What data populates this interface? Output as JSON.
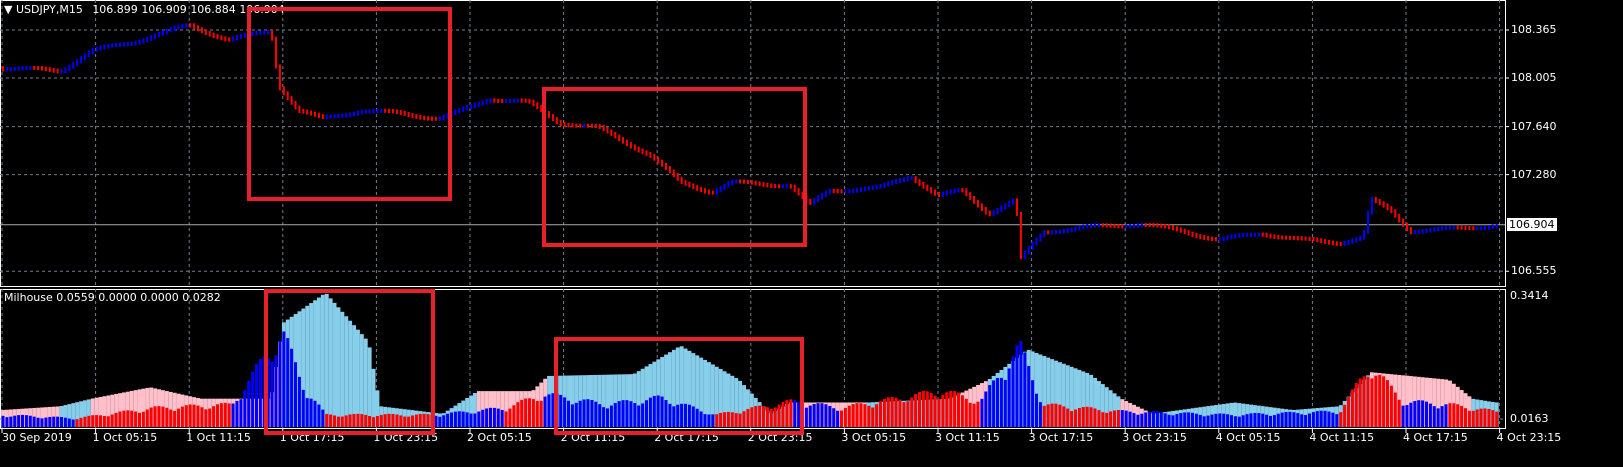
{
  "header": {
    "symbol": "USDJPY,M15",
    "open": "106.899",
    "high": "106.909",
    "low": "106.884",
    "close": "106.904"
  },
  "indicator_header": {
    "name": "Milhouse",
    "v1": "0.0559",
    "v2": "0.0000",
    "v3": "0.0000",
    "v4": "0.0282"
  },
  "colors": {
    "background": "#000000",
    "grid": "#6f7f8f",
    "bull": "#0000ff",
    "bear": "#ff0000",
    "envelope_pink": "#ffc0cb",
    "envelope_blue": "#87ceeb",
    "annotation": "#e8202a"
  },
  "chart_data": [
    {
      "type": "line",
      "title": "USDJPY,M15",
      "y_ticks": [
        "108.365",
        "108.005",
        "107.640",
        "107.280",
        "106.555"
      ],
      "current_price": "106.904",
      "ylim": [
        106.48,
        108.59
      ],
      "grid": true,
      "points": [
        [
          "09-30 23:15",
          108.08
        ],
        [
          "10-01 03:00",
          108.06
        ],
        [
          "10-01 05:00",
          108.21
        ],
        [
          "10-01 07:30",
          108.27
        ],
        [
          "10-01 10:00",
          108.36
        ],
        [
          "10-01 11:15",
          108.4
        ],
        [
          "10-01 13:45",
          108.29
        ],
        [
          "10-01 16:30",
          108.36
        ],
        [
          "10-01 17:00",
          107.95
        ],
        [
          "10-01 18:15",
          107.76
        ],
        [
          "10-01 19:45",
          107.7
        ],
        [
          "10-01 22:15",
          107.76
        ],
        [
          "10-02 00:45",
          107.74
        ],
        [
          "10-02 03:15",
          107.7
        ],
        [
          "10-02 04:30",
          107.75
        ],
        [
          "10-02 06:30",
          107.85
        ],
        [
          "10-02 09:00",
          107.82
        ],
        [
          "10-02 11:00",
          107.67
        ],
        [
          "10-02 13:30",
          107.63
        ],
        [
          "10-02 16:45",
          107.43
        ],
        [
          "10-02 18:45",
          107.22
        ],
        [
          "10-02 20:45",
          107.15
        ],
        [
          "10-02 22:00",
          107.22
        ],
        [
          "10-03 01:45",
          107.2
        ],
        [
          "10-03 03:00",
          107.05
        ],
        [
          "10-03 04:15",
          107.16
        ],
        [
          "10-03 07:30",
          107.18
        ],
        [
          "10-03 09:30",
          107.27
        ],
        [
          "10-03 11:15",
          107.12
        ],
        [
          "10-03 12:45",
          107.16
        ],
        [
          "10-03 14:30",
          106.99
        ],
        [
          "10-03 16:15",
          107.09
        ],
        [
          "10-03 16:30",
          106.64
        ],
        [
          "10-03 18:00",
          106.85
        ],
        [
          "10-03 20:15",
          106.88
        ],
        [
          "10-04 00:15",
          106.91
        ],
        [
          "10-04 02:45",
          106.86
        ],
        [
          "10-04 05:15",
          106.79
        ],
        [
          "10-04 08:00",
          106.84
        ],
        [
          "10-04 10:30",
          106.79
        ],
        [
          "10-04 13:00",
          106.77
        ],
        [
          "10-04 14:30",
          106.81
        ],
        [
          "10-04 15:00",
          107.09
        ],
        [
          "10-04 16:15",
          107.01
        ],
        [
          "10-04 17:30",
          106.86
        ],
        [
          "10-04 20:00",
          106.87
        ],
        [
          "10-04 23:00",
          106.9
        ]
      ]
    },
    {
      "type": "bar",
      "title": "Milhouse",
      "y_ticks": [
        "0.3414",
        "0.0163"
      ],
      "ylim": [
        0.0,
        0.37
      ],
      "envelope": [
        [
          "09-30 23:15",
          0.04,
          "pink"
        ],
        [
          "10-01 03:00",
          0.05,
          "blue"
        ],
        [
          "10-01 05:00",
          0.07,
          "pink"
        ],
        [
          "10-01 08:45",
          0.1,
          "pink"
        ],
        [
          "10-01 12:00",
          0.07,
          "pink"
        ],
        [
          "10-01 16:30",
          0.07,
          "pink"
        ],
        [
          "10-01 17:15",
          0.27,
          "blue"
        ],
        [
          "10-01 20:00",
          0.35,
          "blue"
        ],
        [
          "10-01 22:45",
          0.22,
          "blue"
        ],
        [
          "10-01 23:30",
          0.05,
          "blue"
        ],
        [
          "10-02 03:30",
          0.03,
          "blue"
        ],
        [
          "10-02 05:45",
          0.09,
          "pink"
        ],
        [
          "10-02 09:15",
          0.09,
          "pink"
        ],
        [
          "10-02 10:15",
          0.13,
          "blue"
        ],
        [
          "10-02 15:45",
          0.135,
          "blue"
        ],
        [
          "10-02 18:45",
          0.21,
          "blue"
        ],
        [
          "10-02 22:30",
          0.12,
          "blue"
        ],
        [
          "10-03 00:30",
          0.03,
          "blue"
        ],
        [
          "10-03 01:45",
          0.06,
          "pink"
        ],
        [
          "10-03 06:45",
          0.06,
          "blue"
        ],
        [
          "10-03 12:00",
          0.07,
          "pink"
        ],
        [
          "10-03 14:30",
          0.12,
          "blue"
        ],
        [
          "10-03 17:00",
          0.2,
          "blue"
        ],
        [
          "10-03 21:00",
          0.135,
          "blue"
        ],
        [
          "10-03 23:00",
          0.07,
          "pink"
        ],
        [
          "10-04 01:00",
          0.03,
          "blue"
        ],
        [
          "10-04 06:15",
          0.06,
          "blue"
        ],
        [
          "10-04 10:00",
          0.04,
          "blue"
        ],
        [
          "10-04 13:00",
          0.05,
          "blue"
        ],
        [
          "10-04 15:00",
          0.14,
          "pink"
        ],
        [
          "10-04 20:00",
          0.12,
          "pink"
        ],
        [
          "10-04 21:30",
          0.07,
          "blue"
        ],
        [
          "10-04 23:00",
          0.06,
          "blue"
        ]
      ],
      "signal": [
        [
          "09-30 23:15",
          0.03,
          "blue"
        ],
        [
          "10-01 04:00",
          0.02,
          "red"
        ],
        [
          "10-01 09:00",
          0.05,
          "red"
        ],
        [
          "10-01 14:00",
          0.06,
          "blue"
        ],
        [
          "10-01 17:15",
          0.27,
          "blue"
        ],
        [
          "10-01 18:30",
          0.12,
          "blue"
        ],
        [
          "10-01 20:00",
          0.03,
          "red"
        ],
        [
          "10-02 03:00",
          0.03,
          "blue"
        ],
        [
          "10-02 07:30",
          0.05,
          "red"
        ],
        [
          "10-02 10:00",
          0.09,
          "blue"
        ],
        [
          "10-02 14:00",
          0.06,
          "blue"
        ],
        [
          "10-02 17:30",
          0.08,
          "blue"
        ],
        [
          "10-02 21:00",
          0.03,
          "red"
        ],
        [
          "10-03 02:00",
          0.07,
          "blue"
        ],
        [
          "10-03 05:00",
          0.05,
          "red"
        ],
        [
          "10-03 11:30",
          0.1,
          "red"
        ],
        [
          "10-03 14:00",
          0.07,
          "blue"
        ],
        [
          "10-03 16:30",
          0.23,
          "blue"
        ],
        [
          "10-03 18:00",
          0.06,
          "red"
        ],
        [
          "10-03 23:00",
          0.04,
          "blue"
        ],
        [
          "10-04 06:00",
          0.03,
          "blue"
        ],
        [
          "10-04 13:00",
          0.04,
          "red"
        ],
        [
          "10-04 15:00",
          0.175,
          "red"
        ],
        [
          "10-04 17:00",
          0.07,
          "blue"
        ],
        [
          "10-04 20:00",
          0.06,
          "red"
        ],
        [
          "10-04 23:00",
          0.04,
          "red"
        ]
      ]
    }
  ],
  "time_axis": [
    "30 Sep 2019",
    "1 Oct 05:15",
    "1 Oct 11:15",
    "1 Oct 17:15",
    "1 Oct 23:15",
    "2 Oct 05:15",
    "2 Oct 11:15",
    "2 Oct 17:15",
    "2 Oct 23:15",
    "3 Oct 05:15",
    "3 Oct 11:15",
    "3 Oct 17:15",
    "3 Oct 23:15",
    "4 Oct 05:15",
    "4 Oct 11:15",
    "4 Oct 17:15",
    "4 Oct 23:15"
  ]
}
